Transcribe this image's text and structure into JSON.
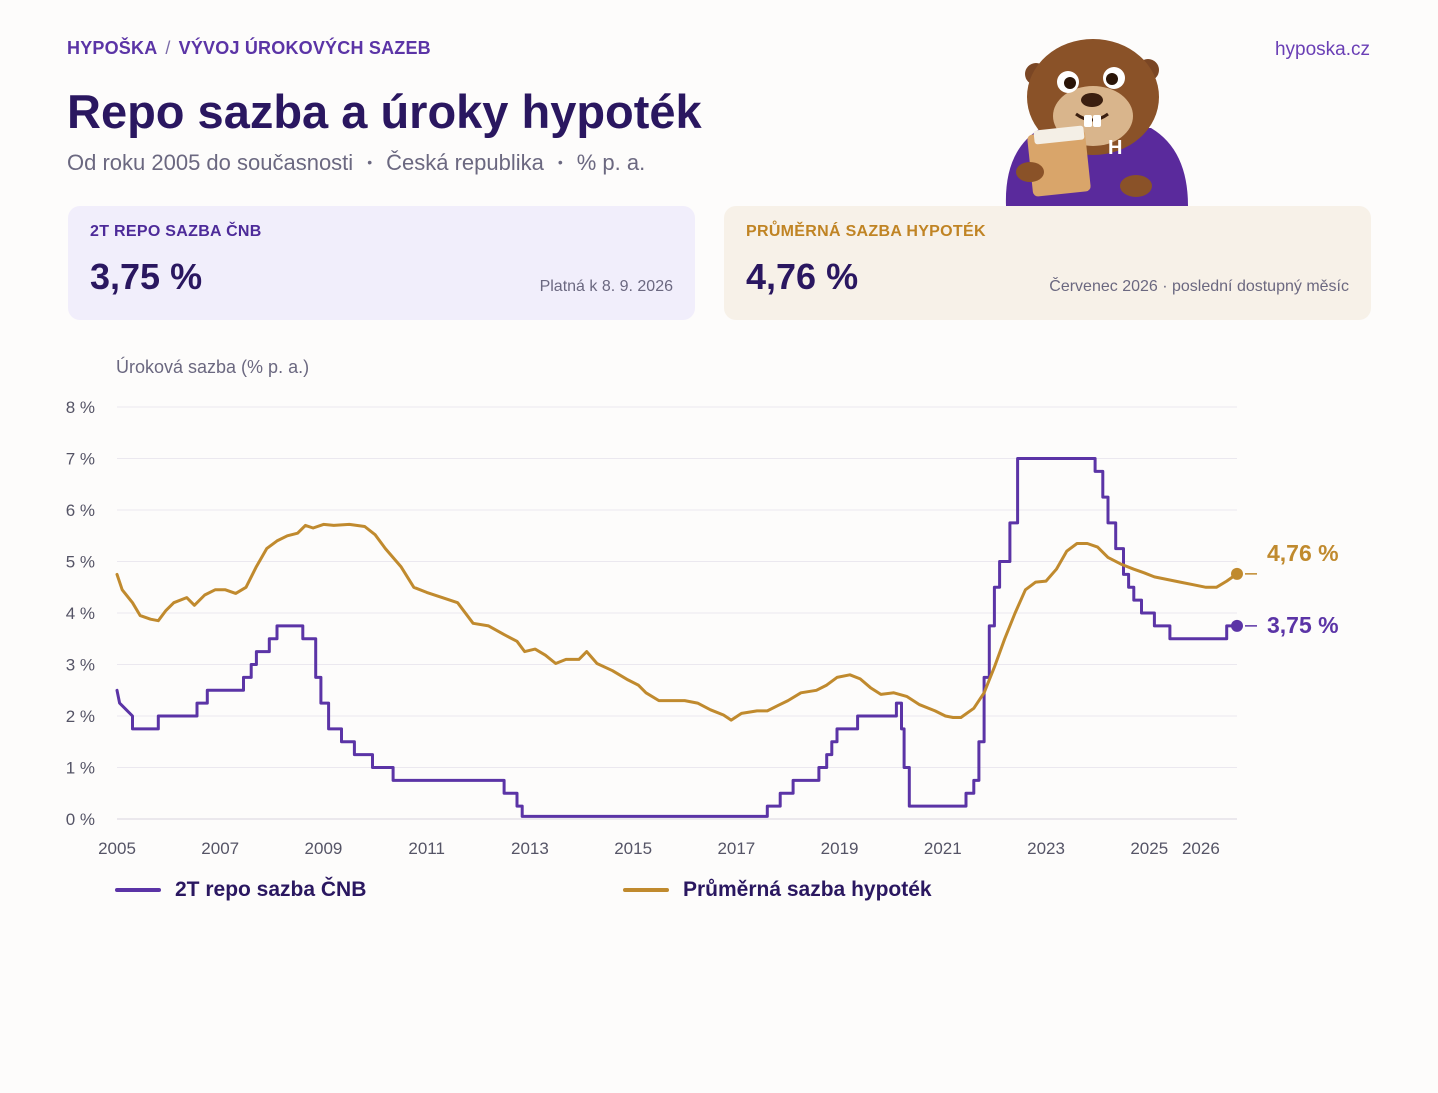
{
  "header": {
    "brand": "HYPOŠKA",
    "breadcrumb_sep": "/",
    "section": "VÝVOJ ÚROKOVÝCH SAZEB",
    "site": "hyposka.cz",
    "title": "Repo sazba a úroky hypoték",
    "subtitle_parts": [
      "Od roku 2005 do současnosti",
      "Česká republika",
      "% p. a."
    ],
    "subtitle_dot": "•"
  },
  "cards": {
    "repo": {
      "label": "2T REPO SAZBA ČNB",
      "value": "3,75 %",
      "note": "Platná k 8. 9. 2026"
    },
    "mortgage": {
      "label": "PRŮMĚRNÁ SAZBA HYPOTÉK",
      "value": "4,76 %",
      "note": "Červenec 2026 · poslední dostupný měsíc"
    }
  },
  "mascot": {
    "badge_letter": "H",
    "icon": "beaver-mascot-icon"
  },
  "colors": {
    "repo": "#5b34a6",
    "mortgage": "#c08a2e",
    "title": "#2a1760",
    "grid": "#ebe8ef"
  },
  "chart_data": {
    "type": "line",
    "ylabel": "Úroková sazba (% p. a.)",
    "ylim": [
      0,
      8
    ],
    "yticks": [
      "0 %",
      "1 %",
      "2 %",
      "3 %",
      "4 %",
      "5 %",
      "6 %",
      "7 %",
      "8 %"
    ],
    "xlim": [
      2005,
      2026.7
    ],
    "xticks": [
      {
        "value": 2005,
        "label": "2005"
      },
      {
        "value": 2007,
        "label": "2007"
      },
      {
        "value": 2009,
        "label": "2009"
      },
      {
        "value": 2011,
        "label": "2011"
      },
      {
        "value": 2013,
        "label": "2013"
      },
      {
        "value": 2015,
        "label": "2015"
      },
      {
        "value": 2017,
        "label": "2017"
      },
      {
        "value": 2019,
        "label": "2019"
      },
      {
        "value": 2021,
        "label": "2021"
      },
      {
        "value": 2023,
        "label": "2023"
      },
      {
        "value": 2025,
        "label": "2025"
      },
      {
        "value": 2026,
        "label": "2026"
      }
    ],
    "grid": true,
    "series": [
      {
        "name": "2T repo sazba ČNB",
        "step": true,
        "end_label": "3,75 %",
        "points": [
          [
            2005.0,
            2.5
          ],
          [
            2005.05,
            2.25
          ],
          [
            2005.3,
            2.0
          ],
          [
            2005.3,
            1.75
          ],
          [
            2005.8,
            1.75
          ],
          [
            2005.8,
            2.0
          ],
          [
            2006.55,
            2.0
          ],
          [
            2006.55,
            2.25
          ],
          [
            2006.75,
            2.25
          ],
          [
            2006.75,
            2.5
          ],
          [
            2007.45,
            2.5
          ],
          [
            2007.45,
            2.75
          ],
          [
            2007.6,
            2.75
          ],
          [
            2007.6,
            3.0
          ],
          [
            2007.7,
            3.0
          ],
          [
            2007.7,
            3.25
          ],
          [
            2007.95,
            3.25
          ],
          [
            2007.95,
            3.5
          ],
          [
            2008.1,
            3.5
          ],
          [
            2008.1,
            3.75
          ],
          [
            2008.6,
            3.75
          ],
          [
            2008.6,
            3.5
          ],
          [
            2008.85,
            3.5
          ],
          [
            2008.85,
            2.75
          ],
          [
            2008.95,
            2.75
          ],
          [
            2008.95,
            2.25
          ],
          [
            2009.1,
            2.25
          ],
          [
            2009.1,
            1.75
          ],
          [
            2009.35,
            1.75
          ],
          [
            2009.35,
            1.5
          ],
          [
            2009.6,
            1.5
          ],
          [
            2009.6,
            1.25
          ],
          [
            2009.95,
            1.25
          ],
          [
            2009.95,
            1.0
          ],
          [
            2010.35,
            1.0
          ],
          [
            2010.35,
            0.75
          ],
          [
            2012.5,
            0.75
          ],
          [
            2012.5,
            0.5
          ],
          [
            2012.75,
            0.5
          ],
          [
            2012.75,
            0.25
          ],
          [
            2012.85,
            0.25
          ],
          [
            2012.85,
            0.05
          ],
          [
            2017.6,
            0.05
          ],
          [
            2017.6,
            0.25
          ],
          [
            2017.85,
            0.25
          ],
          [
            2017.85,
            0.5
          ],
          [
            2018.1,
            0.5
          ],
          [
            2018.1,
            0.75
          ],
          [
            2018.6,
            0.75
          ],
          [
            2018.6,
            1.0
          ],
          [
            2018.75,
            1.0
          ],
          [
            2018.75,
            1.25
          ],
          [
            2018.85,
            1.25
          ],
          [
            2018.85,
            1.5
          ],
          [
            2018.95,
            1.5
          ],
          [
            2018.95,
            1.75
          ],
          [
            2019.35,
            1.75
          ],
          [
            2019.35,
            2.0
          ],
          [
            2020.1,
            2.0
          ],
          [
            2020.1,
            2.25
          ],
          [
            2020.2,
            2.25
          ],
          [
            2020.2,
            1.75
          ],
          [
            2020.25,
            1.75
          ],
          [
            2020.25,
            1.0
          ],
          [
            2020.35,
            1.0
          ],
          [
            2020.35,
            0.25
          ],
          [
            2021.45,
            0.25
          ],
          [
            2021.45,
            0.5
          ],
          [
            2021.6,
            0.5
          ],
          [
            2021.6,
            0.75
          ],
          [
            2021.7,
            0.75
          ],
          [
            2021.7,
            1.5
          ],
          [
            2021.8,
            1.5
          ],
          [
            2021.8,
            2.75
          ],
          [
            2021.9,
            2.75
          ],
          [
            2021.9,
            3.75
          ],
          [
            2022.0,
            3.75
          ],
          [
            2022.0,
            4.5
          ],
          [
            2022.1,
            4.5
          ],
          [
            2022.1,
            5.0
          ],
          [
            2022.3,
            5.0
          ],
          [
            2022.3,
            5.75
          ],
          [
            2022.45,
            5.75
          ],
          [
            2022.45,
            7.0
          ],
          [
            2023.95,
            7.0
          ],
          [
            2023.95,
            6.75
          ],
          [
            2024.1,
            6.75
          ],
          [
            2024.1,
            6.25
          ],
          [
            2024.2,
            6.25
          ],
          [
            2024.2,
            5.75
          ],
          [
            2024.35,
            5.75
          ],
          [
            2024.35,
            5.25
          ],
          [
            2024.5,
            5.25
          ],
          [
            2024.5,
            4.75
          ],
          [
            2024.6,
            4.75
          ],
          [
            2024.6,
            4.5
          ],
          [
            2024.7,
            4.5
          ],
          [
            2024.7,
            4.25
          ],
          [
            2024.85,
            4.25
          ],
          [
            2024.85,
            4.0
          ],
          [
            2025.1,
            4.0
          ],
          [
            2025.1,
            3.75
          ],
          [
            2025.4,
            3.75
          ],
          [
            2025.4,
            3.5
          ],
          [
            2026.5,
            3.5
          ],
          [
            2026.5,
            3.75
          ],
          [
            2026.7,
            3.75
          ]
        ]
      },
      {
        "name": "Průměrná sazba hypoték",
        "step": false,
        "end_label": "4,76 %",
        "points": [
          [
            2005.0,
            4.75
          ],
          [
            2005.1,
            4.45
          ],
          [
            2005.3,
            4.2
          ],
          [
            2005.45,
            3.95
          ],
          [
            2005.65,
            3.88
          ],
          [
            2005.8,
            3.85
          ],
          [
            2005.95,
            4.05
          ],
          [
            2006.1,
            4.2
          ],
          [
            2006.35,
            4.3
          ],
          [
            2006.5,
            4.15
          ],
          [
            2006.7,
            4.35
          ],
          [
            2006.9,
            4.45
          ],
          [
            2007.1,
            4.45
          ],
          [
            2007.3,
            4.38
          ],
          [
            2007.5,
            4.5
          ],
          [
            2007.7,
            4.9
          ],
          [
            2007.9,
            5.25
          ],
          [
            2008.1,
            5.4
          ],
          [
            2008.3,
            5.5
          ],
          [
            2008.5,
            5.55
          ],
          [
            2008.65,
            5.7
          ],
          [
            2008.8,
            5.65
          ],
          [
            2009.0,
            5.72
          ],
          [
            2009.2,
            5.7
          ],
          [
            2009.5,
            5.72
          ],
          [
            2009.8,
            5.68
          ],
          [
            2010.0,
            5.52
          ],
          [
            2010.2,
            5.25
          ],
          [
            2010.5,
            4.9
          ],
          [
            2010.75,
            4.5
          ],
          [
            2011.0,
            4.4
          ],
          [
            2011.3,
            4.3
          ],
          [
            2011.6,
            4.2
          ],
          [
            2011.9,
            3.8
          ],
          [
            2012.2,
            3.75
          ],
          [
            2012.5,
            3.58
          ],
          [
            2012.75,
            3.45
          ],
          [
            2012.9,
            3.25
          ],
          [
            2013.1,
            3.3
          ],
          [
            2013.3,
            3.18
          ],
          [
            2013.5,
            3.02
          ],
          [
            2013.7,
            3.1
          ],
          [
            2013.95,
            3.1
          ],
          [
            2014.1,
            3.25
          ],
          [
            2014.3,
            3.02
          ],
          [
            2014.6,
            2.88
          ],
          [
            2014.9,
            2.7
          ],
          [
            2015.1,
            2.6
          ],
          [
            2015.25,
            2.45
          ],
          [
            2015.5,
            2.3
          ],
          [
            2015.75,
            2.3
          ],
          [
            2016.0,
            2.3
          ],
          [
            2016.25,
            2.25
          ],
          [
            2016.5,
            2.12
          ],
          [
            2016.75,
            2.02
          ],
          [
            2016.9,
            1.92
          ],
          [
            2017.1,
            2.05
          ],
          [
            2017.4,
            2.1
          ],
          [
            2017.6,
            2.1
          ],
          [
            2017.8,
            2.2
          ],
          [
            2018.0,
            2.3
          ],
          [
            2018.25,
            2.45
          ],
          [
            2018.55,
            2.5
          ],
          [
            2018.75,
            2.6
          ],
          [
            2018.95,
            2.75
          ],
          [
            2019.2,
            2.8
          ],
          [
            2019.4,
            2.72
          ],
          [
            2019.6,
            2.55
          ],
          [
            2019.8,
            2.42
          ],
          [
            2020.05,
            2.45
          ],
          [
            2020.3,
            2.38
          ],
          [
            2020.55,
            2.22
          ],
          [
            2020.85,
            2.1
          ],
          [
            2021.05,
            2.0
          ],
          [
            2021.2,
            1.97
          ],
          [
            2021.35,
            1.97
          ],
          [
            2021.6,
            2.15
          ],
          [
            2021.8,
            2.45
          ],
          [
            2022.0,
            2.95
          ],
          [
            2022.2,
            3.5
          ],
          [
            2022.4,
            4.0
          ],
          [
            2022.6,
            4.45
          ],
          [
            2022.8,
            4.6
          ],
          [
            2023.0,
            4.62
          ],
          [
            2023.2,
            4.85
          ],
          [
            2023.4,
            5.2
          ],
          [
            2023.6,
            5.35
          ],
          [
            2023.8,
            5.35
          ],
          [
            2024.0,
            5.28
          ],
          [
            2024.2,
            5.08
          ],
          [
            2024.45,
            4.95
          ],
          [
            2024.7,
            4.85
          ],
          [
            2024.9,
            4.78
          ],
          [
            2025.1,
            4.7
          ],
          [
            2025.35,
            4.65
          ],
          [
            2025.6,
            4.6
          ],
          [
            2025.85,
            4.55
          ],
          [
            2026.1,
            4.5
          ],
          [
            2026.3,
            4.5
          ],
          [
            2026.5,
            4.62
          ],
          [
            2026.7,
            4.76
          ]
        ]
      }
    ]
  }
}
